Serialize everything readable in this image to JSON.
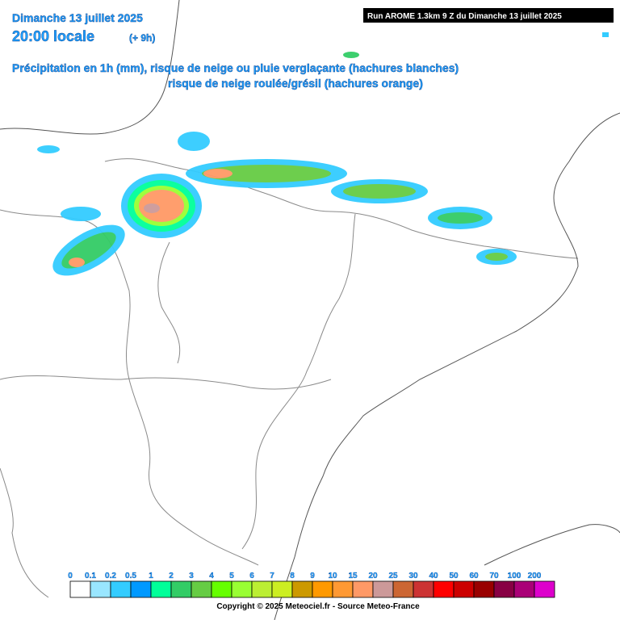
{
  "header": {
    "date": "Dimanche 13 juillet 2025",
    "time": "20:00 locale",
    "lead": "(+ 9h)",
    "run": "Run AROME 1.3km 9 Z du Dimanche 13 juillet 2025",
    "subtitle_1": "Précipitation en 1h (mm), risque de neige ou pluie verglaçante (hachures blanches)",
    "subtitle_2": "risque de neige roulée/grésil (hachures orange)"
  },
  "legend": {
    "items": [
      {
        "label": 0,
        "color": "#ffffff"
      },
      {
        "label": 0.1,
        "color": "#99e6ff"
      },
      {
        "label": 0.2,
        "color": "#33ccff"
      },
      {
        "label": 0.5,
        "color": "#0099ff"
      },
      {
        "label": 1,
        "color": "#00ff99"
      },
      {
        "label": 2,
        "color": "#33cc66"
      },
      {
        "label": 3,
        "color": "#66cc44"
      },
      {
        "label": 4,
        "color": "#66ff00"
      },
      {
        "label": 5,
        "color": "#99ff33"
      },
      {
        "label": 6,
        "color": "#bbee33"
      },
      {
        "label": 7,
        "color": "#ccee22"
      },
      {
        "label": 8,
        "color": "#cc9900"
      },
      {
        "label": 9,
        "color": "#ff9900"
      },
      {
        "label": 10,
        "color": "#ff9933"
      },
      {
        "label": 15,
        "color": "#ff9966"
      },
      {
        "label": 20,
        "color": "#cc9999"
      },
      {
        "label": 25,
        "color": "#cc6633"
      },
      {
        "label": 30,
        "color": "#cc3333"
      },
      {
        "label": 40,
        "color": "#ff0000"
      },
      {
        "label": 50,
        "color": "#cc0000"
      },
      {
        "label": 60,
        "color": "#990000"
      },
      {
        "label": 70,
        "color": "#880044"
      },
      {
        "label": 100,
        "color": "#aa0077"
      },
      {
        "label": 200,
        "color": "#dd00cc"
      }
    ]
  },
  "footer": {
    "copyright": "Copyright © 2025 Meteociel.fr - Source Meteo-France"
  }
}
